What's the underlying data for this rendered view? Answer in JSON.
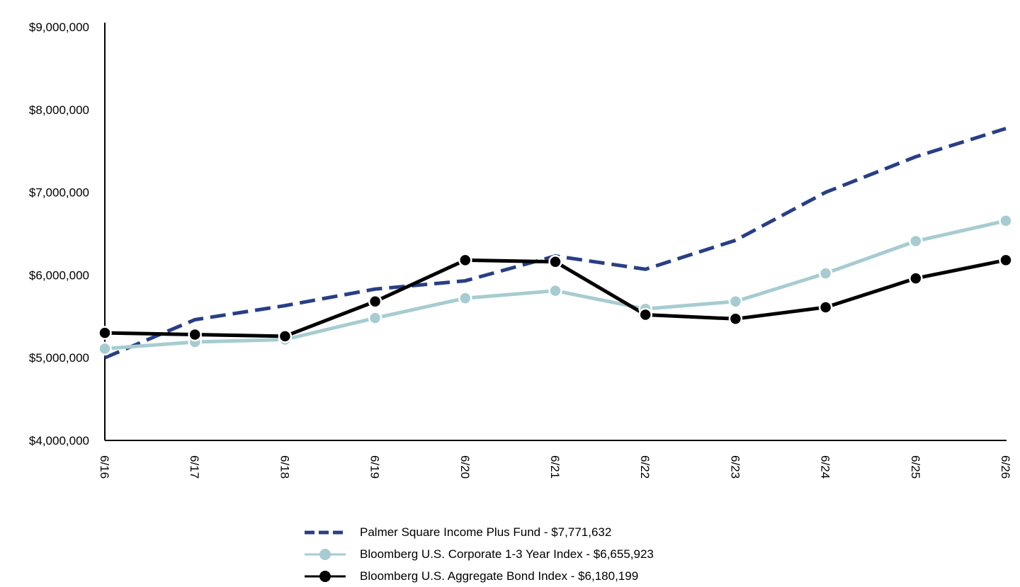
{
  "chart_data": {
    "type": "line",
    "title": "",
    "xlabel": "",
    "ylabel": "",
    "ylim": [
      4000000,
      9000000
    ],
    "y_ticks": [
      "$4,000,000",
      "$5,000,000",
      "$6,000,000",
      "$7,000,000",
      "$8,000,000",
      "$9,000,000"
    ],
    "y_tick_values": [
      4000000,
      5000000,
      6000000,
      7000000,
      8000000,
      9000000
    ],
    "categories": [
      "6/16",
      "6/17",
      "6/18",
      "6/19",
      "6/20",
      "6/21",
      "6/22",
      "6/23",
      "6/24",
      "6/25",
      "6/26"
    ],
    "grid": false,
    "legend_position": "bottom-center",
    "series": [
      {
        "name": "Palmer Square Income Plus Fund - $7,771,632",
        "color": "#283f85",
        "style": "dashed",
        "marker": "none",
        "values": [
          5000000,
          5460000,
          5630000,
          5830000,
          5930000,
          6230000,
          6070000,
          6420000,
          7000000,
          7430000,
          7771632
        ]
      },
      {
        "name": "Bloomberg U.S. Corporate 1-3 Year Index - $6,655,923",
        "color": "#a6ccd1",
        "style": "solid",
        "marker": "circle",
        "values": [
          5110000,
          5190000,
          5220000,
          5480000,
          5720000,
          5810000,
          5590000,
          5680000,
          6020000,
          6410000,
          6655923
        ]
      },
      {
        "name": "Bloomberg U.S. Aggregate Bond Index - $6,180,199",
        "color": "#000000",
        "style": "solid",
        "marker": "circle",
        "values": [
          5300000,
          5280000,
          5260000,
          5680000,
          6180000,
          6160000,
          5520000,
          5470000,
          5610000,
          5960000,
          6180199
        ]
      }
    ]
  }
}
